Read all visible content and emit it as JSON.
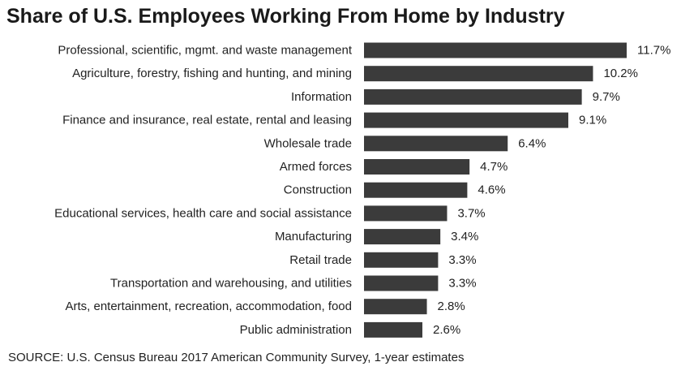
{
  "chart_data": {
    "type": "bar",
    "orientation": "horizontal",
    "title": "Share of U.S. Employees Working From Home by Industry",
    "source": "SOURCE: U.S. Census Bureau 2017 American Community Survey, 1-year estimates",
    "bar_color": "#3b3b3b",
    "categories": [
      "Professional, scientific, mgmt. and waste management",
      "Agriculture, forestry, fishing and hunting, and mining",
      "Information",
      "Finance and insurance, real estate, rental and leasing",
      "Wholesale trade",
      "Armed forces",
      "Construction",
      "Educational services, health care and social assistance",
      "Manufacturing",
      "Retail trade",
      "Transportation and warehousing, and utilities",
      "Arts, entertainment, recreation, accommodation, food",
      "Public administration"
    ],
    "values": [
      11.7,
      10.2,
      9.7,
      9.1,
      6.4,
      4.7,
      4.6,
      3.7,
      3.4,
      3.3,
      3.3,
      2.8,
      2.6
    ],
    "value_labels": [
      "11.7%",
      "10.2%",
      "9.7%",
      "9.1%",
      "6.4%",
      "4.7%",
      "4.6%",
      "3.7%",
      "3.4%",
      "3.3%",
      "3.3%",
      "2.8%",
      "2.6%"
    ],
    "grid": false,
    "legend": "none"
  }
}
